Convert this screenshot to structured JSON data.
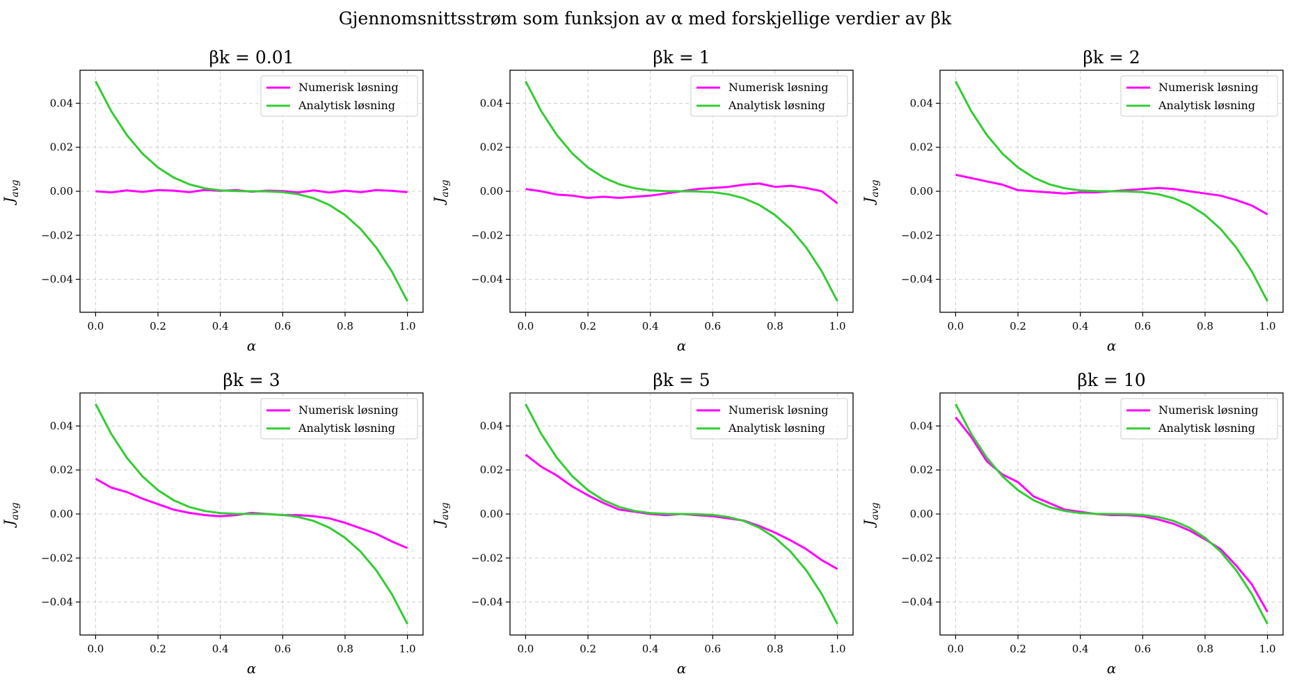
{
  "figure": {
    "suptitle": "Gjennomsnittsstrøm som funksjon av α med forskjellige verdier av βk"
  },
  "chart_data": [
    {
      "type": "line",
      "title": "βk = 0.01",
      "xlabel": "α",
      "ylabel": "J",
      "ylabel_sub": "avg",
      "xlim": [
        -0.05,
        1.05
      ],
      "ylim": [
        -0.055,
        0.055
      ],
      "xticks": [
        0.0,
        0.2,
        0.4,
        0.6,
        0.8,
        1.0
      ],
      "yticks": [
        -0.04,
        -0.02,
        0.0,
        0.02,
        0.04
      ],
      "grid": true,
      "legend_position": "upper right",
      "series": [
        {
          "name": "Numerisk løsning",
          "color": "#ff00ff",
          "x": [
            0.0,
            0.05,
            0.1,
            0.15,
            0.2,
            0.25,
            0.3,
            0.35,
            0.4,
            0.45,
            0.5,
            0.55,
            0.6,
            0.65,
            0.7,
            0.75,
            0.8,
            0.85,
            0.9,
            0.95,
            1.0
          ],
          "y": [
            0.0,
            -0.0005,
            0.0004,
            -0.0003,
            0.0005,
            0.0003,
            -0.0004,
            0.0006,
            0.0002,
            0.0005,
            -0.0002,
            0.0003,
            0.0001,
            -0.0005,
            0.0004,
            -0.0006,
            0.0003,
            -0.0004,
            0.0005,
            0.0002,
            -0.0004
          ]
        },
        {
          "name": "Analytisk løsning",
          "color": "#33cc33",
          "formula": "0.05*(1-2x)^3",
          "x": [
            0.0,
            0.05,
            0.1,
            0.15,
            0.2,
            0.25,
            0.3,
            0.35,
            0.4,
            0.45,
            0.5,
            0.55,
            0.6,
            0.65,
            0.7,
            0.75,
            0.8,
            0.85,
            0.9,
            0.95,
            1.0
          ],
          "y": [
            0.05,
            0.03645,
            0.0256,
            0.01715,
            0.0108,
            0.00625,
            0.0032,
            0.00135,
            0.0004,
            5e-05,
            0.0,
            -5e-05,
            -0.0004,
            -0.00135,
            -0.0032,
            -0.00625,
            -0.0108,
            -0.01715,
            -0.0256,
            -0.03645,
            -0.05
          ]
        }
      ]
    },
    {
      "type": "line",
      "title": "βk = 1",
      "xlabel": "α",
      "ylabel": "J",
      "ylabel_sub": "avg",
      "xlim": [
        -0.05,
        1.05
      ],
      "ylim": [
        -0.055,
        0.055
      ],
      "xticks": [
        0.0,
        0.2,
        0.4,
        0.6,
        0.8,
        1.0
      ],
      "yticks": [
        -0.04,
        -0.02,
        0.0,
        0.02,
        0.04
      ],
      "grid": true,
      "legend_position": "upper right",
      "series": [
        {
          "name": "Numerisk løsning",
          "color": "#ff00ff",
          "x": [
            0.0,
            0.05,
            0.1,
            0.15,
            0.2,
            0.25,
            0.3,
            0.35,
            0.4,
            0.45,
            0.5,
            0.55,
            0.6,
            0.65,
            0.7,
            0.75,
            0.8,
            0.85,
            0.9,
            0.95,
            1.0
          ],
          "y": [
            0.001,
            0.0,
            -0.0015,
            -0.002,
            -0.003,
            -0.0025,
            -0.003,
            -0.0025,
            -0.002,
            -0.001,
            0.0,
            0.001,
            0.0015,
            0.002,
            0.003,
            0.0035,
            0.002,
            0.0025,
            0.0015,
            0.0,
            -0.0055
          ]
        },
        {
          "name": "Analytisk løsning",
          "color": "#33cc33",
          "formula": "0.05*(1-2x)^3",
          "x": [
            0.0,
            0.05,
            0.1,
            0.15,
            0.2,
            0.25,
            0.3,
            0.35,
            0.4,
            0.45,
            0.5,
            0.55,
            0.6,
            0.65,
            0.7,
            0.75,
            0.8,
            0.85,
            0.9,
            0.95,
            1.0
          ],
          "y": [
            0.05,
            0.03645,
            0.0256,
            0.01715,
            0.0108,
            0.00625,
            0.0032,
            0.00135,
            0.0004,
            5e-05,
            0.0,
            -5e-05,
            -0.0004,
            -0.00135,
            -0.0032,
            -0.00625,
            -0.0108,
            -0.01715,
            -0.0256,
            -0.03645,
            -0.05
          ]
        }
      ]
    },
    {
      "type": "line",
      "title": "βk = 2",
      "xlabel": "α",
      "ylabel": "J",
      "ylabel_sub": "avg",
      "xlim": [
        -0.05,
        1.05
      ],
      "ylim": [
        -0.055,
        0.055
      ],
      "xticks": [
        0.0,
        0.2,
        0.4,
        0.6,
        0.8,
        1.0
      ],
      "yticks": [
        -0.04,
        -0.02,
        0.0,
        0.02,
        0.04
      ],
      "grid": true,
      "legend_position": "upper right",
      "series": [
        {
          "name": "Numerisk løsning",
          "color": "#ff00ff",
          "x": [
            0.0,
            0.05,
            0.1,
            0.15,
            0.2,
            0.25,
            0.3,
            0.35,
            0.4,
            0.45,
            0.5,
            0.55,
            0.6,
            0.65,
            0.7,
            0.75,
            0.8,
            0.85,
            0.9,
            0.95,
            1.0
          ],
          "y": [
            0.0075,
            0.006,
            0.0045,
            0.003,
            0.0005,
            0.0,
            -0.0005,
            -0.001,
            -0.0005,
            -0.0005,
            0.0,
            0.0005,
            0.001,
            0.0015,
            0.001,
            0.0,
            -0.001,
            -0.002,
            -0.004,
            -0.0065,
            -0.0105
          ]
        },
        {
          "name": "Analytisk løsning",
          "color": "#33cc33",
          "formula": "0.05*(1-2x)^3",
          "x": [
            0.0,
            0.05,
            0.1,
            0.15,
            0.2,
            0.25,
            0.3,
            0.35,
            0.4,
            0.45,
            0.5,
            0.55,
            0.6,
            0.65,
            0.7,
            0.75,
            0.8,
            0.85,
            0.9,
            0.95,
            1.0
          ],
          "y": [
            0.05,
            0.03645,
            0.0256,
            0.01715,
            0.0108,
            0.00625,
            0.0032,
            0.00135,
            0.0004,
            5e-05,
            0.0,
            -5e-05,
            -0.0004,
            -0.00135,
            -0.0032,
            -0.00625,
            -0.0108,
            -0.01715,
            -0.0256,
            -0.03645,
            -0.05
          ]
        }
      ]
    },
    {
      "type": "line",
      "title": "βk = 3",
      "xlabel": "α",
      "ylabel": "J",
      "ylabel_sub": "avg",
      "xlim": [
        -0.05,
        1.05
      ],
      "ylim": [
        -0.055,
        0.055
      ],
      "xticks": [
        0.0,
        0.2,
        0.4,
        0.6,
        0.8,
        1.0
      ],
      "yticks": [
        -0.04,
        -0.02,
        0.0,
        0.02,
        0.04
      ],
      "grid": true,
      "legend_position": "upper right",
      "series": [
        {
          "name": "Numerisk løsning",
          "color": "#ff00ff",
          "x": [
            0.0,
            0.05,
            0.1,
            0.15,
            0.2,
            0.25,
            0.3,
            0.35,
            0.4,
            0.45,
            0.5,
            0.55,
            0.6,
            0.65,
            0.7,
            0.75,
            0.8,
            0.85,
            0.9,
            0.95,
            1.0
          ],
          "y": [
            0.016,
            0.012,
            0.01,
            0.007,
            0.0045,
            0.002,
            0.0005,
            -0.0005,
            -0.001,
            -0.0005,
            0.0005,
            0.0,
            -0.0005,
            -0.0005,
            -0.001,
            -0.002,
            -0.004,
            -0.0065,
            -0.009,
            -0.0125,
            -0.0155
          ]
        },
        {
          "name": "Analytisk løsning",
          "color": "#33cc33",
          "formula": "0.05*(1-2x)^3",
          "x": [
            0.0,
            0.05,
            0.1,
            0.15,
            0.2,
            0.25,
            0.3,
            0.35,
            0.4,
            0.45,
            0.5,
            0.55,
            0.6,
            0.65,
            0.7,
            0.75,
            0.8,
            0.85,
            0.9,
            0.95,
            1.0
          ],
          "y": [
            0.05,
            0.03645,
            0.0256,
            0.01715,
            0.0108,
            0.00625,
            0.0032,
            0.00135,
            0.0004,
            5e-05,
            0.0,
            -5e-05,
            -0.0004,
            -0.00135,
            -0.0032,
            -0.00625,
            -0.0108,
            -0.01715,
            -0.0256,
            -0.03645,
            -0.05
          ]
        }
      ]
    },
    {
      "type": "line",
      "title": "βk = 5",
      "xlabel": "α",
      "ylabel": "J",
      "ylabel_sub": "avg",
      "xlim": [
        -0.05,
        1.05
      ],
      "ylim": [
        -0.055,
        0.055
      ],
      "xticks": [
        0.0,
        0.2,
        0.4,
        0.6,
        0.8,
        1.0
      ],
      "yticks": [
        -0.04,
        -0.02,
        0.0,
        0.02,
        0.04
      ],
      "grid": true,
      "legend_position": "upper right",
      "series": [
        {
          "name": "Numerisk løsning",
          "color": "#ff00ff",
          "x": [
            0.0,
            0.05,
            0.1,
            0.15,
            0.2,
            0.25,
            0.3,
            0.35,
            0.4,
            0.45,
            0.5,
            0.55,
            0.6,
            0.65,
            0.7,
            0.75,
            0.8,
            0.85,
            0.9,
            0.95,
            1.0
          ],
          "y": [
            0.027,
            0.0215,
            0.0175,
            0.0125,
            0.0085,
            0.005,
            0.002,
            0.001,
            0.0,
            -0.0005,
            0.0,
            -0.0005,
            -0.001,
            -0.002,
            -0.003,
            -0.0055,
            -0.0085,
            -0.012,
            -0.016,
            -0.021,
            -0.025
          ]
        },
        {
          "name": "Analytisk løsning",
          "color": "#33cc33",
          "formula": "0.05*(1-2x)^3",
          "x": [
            0.0,
            0.05,
            0.1,
            0.15,
            0.2,
            0.25,
            0.3,
            0.35,
            0.4,
            0.45,
            0.5,
            0.55,
            0.6,
            0.65,
            0.7,
            0.75,
            0.8,
            0.85,
            0.9,
            0.95,
            1.0
          ],
          "y": [
            0.05,
            0.03645,
            0.0256,
            0.01715,
            0.0108,
            0.00625,
            0.0032,
            0.00135,
            0.0004,
            5e-05,
            0.0,
            -5e-05,
            -0.0004,
            -0.00135,
            -0.0032,
            -0.00625,
            -0.0108,
            -0.01715,
            -0.0256,
            -0.03645,
            -0.05
          ]
        }
      ]
    },
    {
      "type": "line",
      "title": "βk = 10",
      "xlabel": "α",
      "ylabel": "J",
      "ylabel_sub": "avg",
      "xlim": [
        -0.05,
        1.05
      ],
      "ylim": [
        -0.055,
        0.055
      ],
      "xticks": [
        0.0,
        0.2,
        0.4,
        0.6,
        0.8,
        1.0
      ],
      "yticks": [
        -0.04,
        -0.02,
        0.0,
        0.02,
        0.04
      ],
      "grid": true,
      "legend_position": "upper right",
      "series": [
        {
          "name": "Numerisk løsning",
          "color": "#ff00ff",
          "x": [
            0.0,
            0.05,
            0.1,
            0.15,
            0.2,
            0.25,
            0.3,
            0.35,
            0.4,
            0.45,
            0.5,
            0.55,
            0.6,
            0.65,
            0.7,
            0.75,
            0.8,
            0.85,
            0.9,
            0.95,
            1.0
          ],
          "y": [
            0.044,
            0.035,
            0.024,
            0.018,
            0.0145,
            0.008,
            0.005,
            0.002,
            0.001,
            0.0,
            -0.0005,
            -0.0005,
            -0.001,
            -0.0025,
            -0.0045,
            -0.0075,
            -0.0115,
            -0.016,
            -0.0235,
            -0.032,
            -0.0445
          ]
        },
        {
          "name": "Analytisk løsning",
          "color": "#33cc33",
          "formula": "0.05*(1-2x)^3",
          "x": [
            0.0,
            0.05,
            0.1,
            0.15,
            0.2,
            0.25,
            0.3,
            0.35,
            0.4,
            0.45,
            0.5,
            0.55,
            0.6,
            0.65,
            0.7,
            0.75,
            0.8,
            0.85,
            0.9,
            0.95,
            1.0
          ],
          "y": [
            0.05,
            0.03645,
            0.0256,
            0.01715,
            0.0108,
            0.00625,
            0.0032,
            0.00135,
            0.0004,
            5e-05,
            0.0,
            -5e-05,
            -0.0004,
            -0.00135,
            -0.0032,
            -0.00625,
            -0.0108,
            -0.01715,
            -0.0256,
            -0.03645,
            -0.05
          ]
        }
      ]
    }
  ]
}
